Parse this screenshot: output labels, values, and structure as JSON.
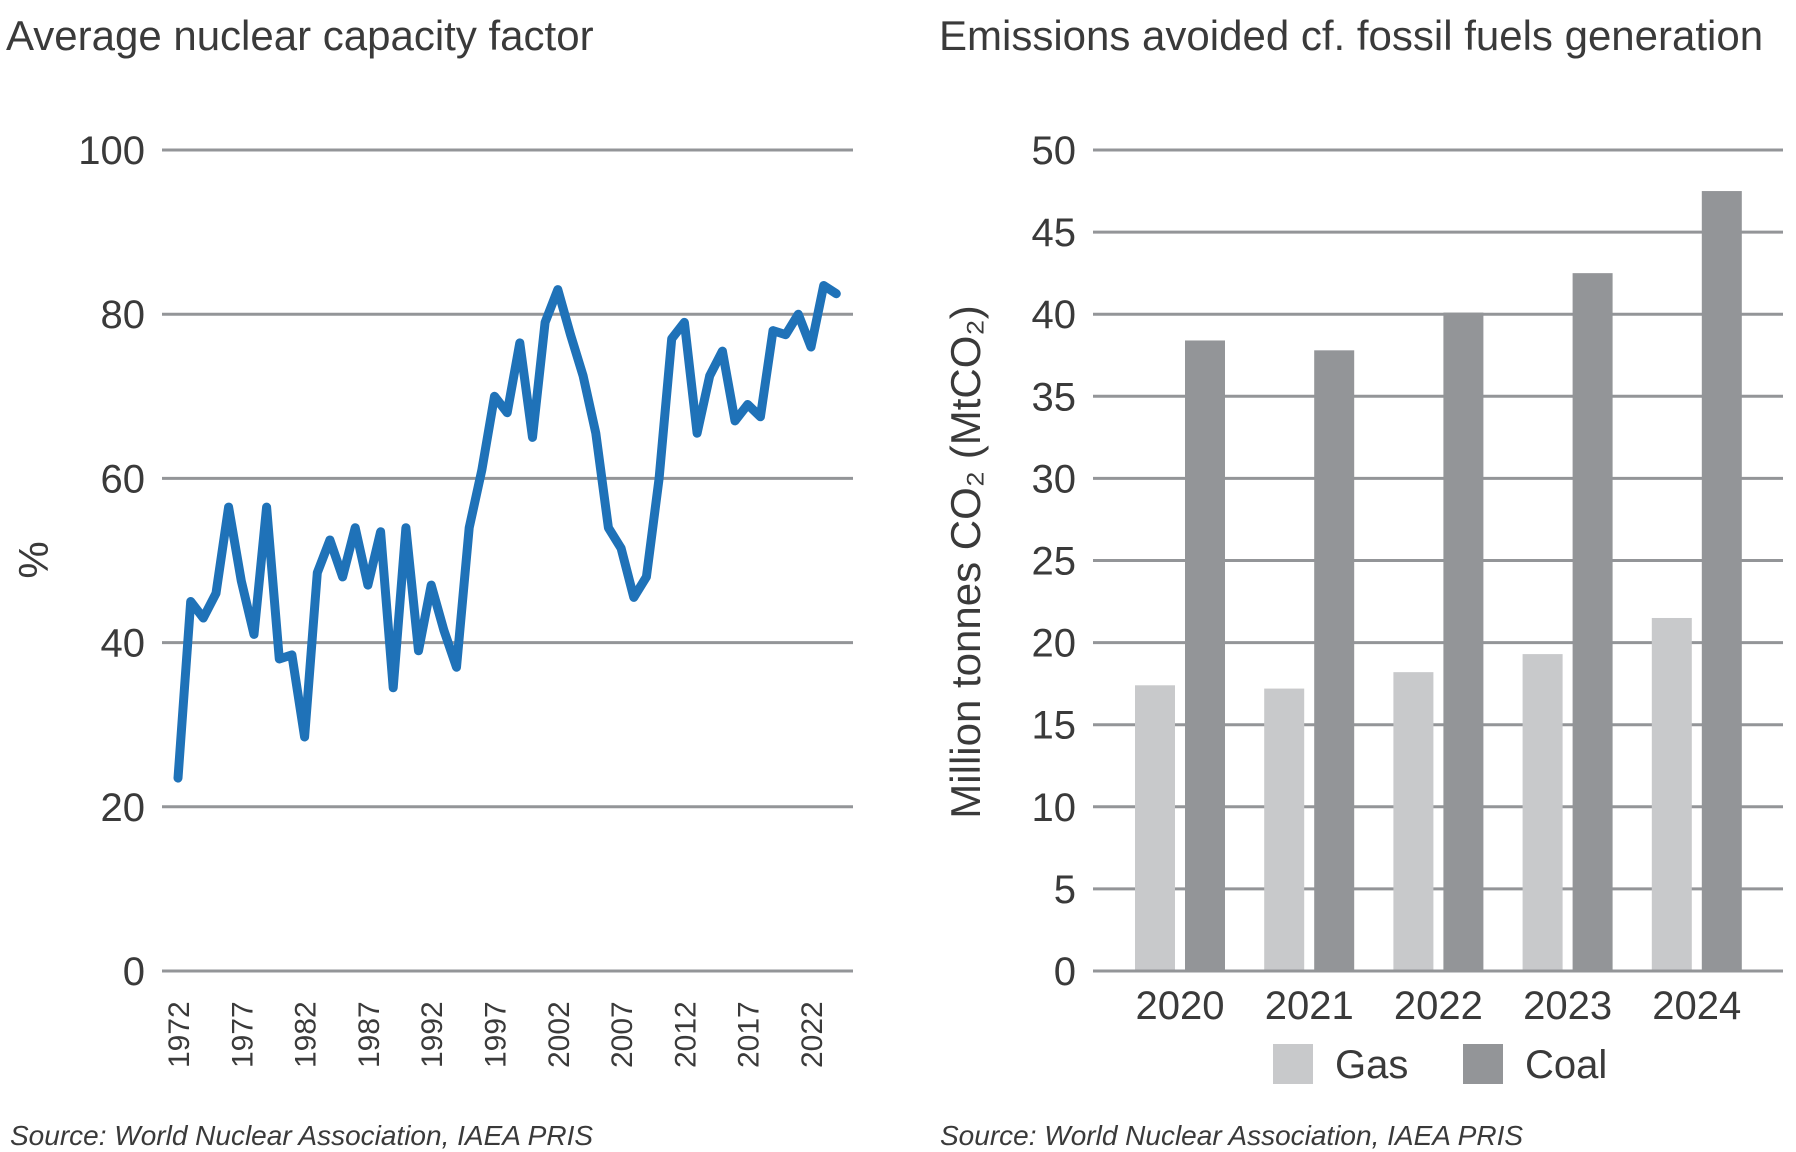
{
  "chart_data": [
    {
      "type": "line",
      "title": "Average nuclear capacity factor",
      "ylabel": "%",
      "xlabel": "",
      "ylim": [
        0,
        100
      ],
      "yticks": [
        0,
        20,
        40,
        60,
        80,
        100
      ],
      "xtick_labels": [
        "1972",
        "1977",
        "1982",
        "1987",
        "1992",
        "1997",
        "2002",
        "2007",
        "2012",
        "2017",
        "2022"
      ],
      "grid": true,
      "line_color": "#1f72b8",
      "x": [
        1972,
        1973,
        1974,
        1975,
        1976,
        1977,
        1978,
        1979,
        1980,
        1981,
        1982,
        1983,
        1984,
        1985,
        1986,
        1987,
        1988,
        1989,
        1990,
        1991,
        1992,
        1993,
        1994,
        1995,
        1996,
        1997,
        1998,
        1999,
        2000,
        2001,
        2002,
        2003,
        2004,
        2005,
        2006,
        2007,
        2008,
        2009,
        2010,
        2011,
        2012,
        2013,
        2014,
        2015,
        2016,
        2017,
        2018,
        2019,
        2020,
        2021,
        2022,
        2023,
        2024
      ],
      "values": [
        23.5,
        45,
        43,
        46,
        56.5,
        47.5,
        41,
        56.5,
        38,
        38.5,
        28.5,
        48.5,
        52.5,
        48,
        54,
        47,
        53.5,
        34.5,
        54,
        39,
        47,
        41.5,
        37,
        54,
        61,
        70,
        68,
        76.5,
        65,
        79,
        83,
        77.5,
        72.5,
        65.5,
        54,
        51.5,
        45.5,
        48,
        60,
        77,
        79,
        65.5,
        72.5,
        75.5,
        67,
        69,
        67.5,
        78,
        77.5,
        80,
        76,
        83.5,
        82.5
      ],
      "source": "Source: World Nuclear Association, IAEA PRIS"
    },
    {
      "type": "bar",
      "title": "Emissions avoided cf. fossil fuels generation",
      "ylabel": "Million tonnes CO₂ (MtCO₂)",
      "xlabel": "",
      "ylim": [
        0,
        50
      ],
      "yticks": [
        0,
        5,
        10,
        15,
        20,
        25,
        30,
        35,
        40,
        45,
        50
      ],
      "grid": true,
      "legend": "bottom",
      "categories": [
        "2020",
        "2021",
        "2022",
        "2023",
        "2024"
      ],
      "series": [
        {
          "name": "Gas",
          "color": "#c8c9cb",
          "values": [
            17.4,
            17.2,
            18.2,
            19.3,
            21.5
          ]
        },
        {
          "name": "Coal",
          "color": "#939598",
          "values": [
            38.4,
            37.8,
            40.1,
            42.5,
            47.5
          ]
        }
      ],
      "source": "Source: World Nuclear Association, IAEA PRIS"
    }
  ]
}
